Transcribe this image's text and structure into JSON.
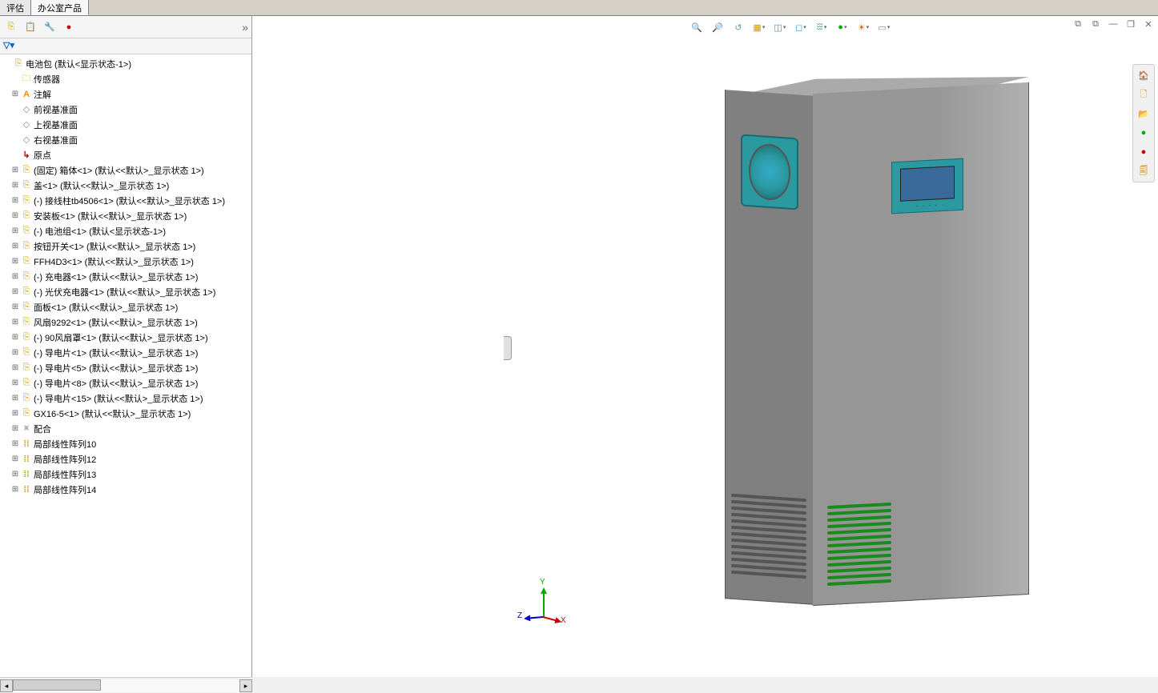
{
  "tabs": {
    "t1": "评估",
    "t2": "办公室产品"
  },
  "filter": "▽▾",
  "tree": {
    "root": "电池包  (默认<显示状态-1>)",
    "sensors": "传感器",
    "annotations": "注解",
    "front_plane": "前视基准面",
    "top_plane": "上视基准面",
    "right_plane": "右视基准面",
    "origin": "原点",
    "items": [
      "(固定) 箱体<1> (默认<<默认>_显示状态 1>)",
      "盖<1> (默认<<默认>_显示状态 1>)",
      "(-) 接线柱tb4506<1> (默认<<默认>_显示状态 1>)",
      "安装板<1> (默认<<默认>_显示状态 1>)",
      "(-) 电池组<1> (默认<显示状态-1>)",
      "按钮开关<1> (默认<<默认>_显示状态 1>)",
      "FFH4D3<1> (默认<<默认>_显示状态 1>)",
      "(-) 充电器<1> (默认<<默认>_显示状态 1>)",
      "(-) 光伏充电器<1> (默认<<默认>_显示状态 1>)",
      "面板<1> (默认<<默认>_显示状态 1>)",
      "风扇9292<1> (默认<<默认>_显示状态 1>)",
      "(-) 90风扇罩<1> (默认<<默认>_显示状态 1>)",
      "(-) 导电片<1> (默认<<默认>_显示状态 1>)",
      "(-) 导电片<5> (默认<<默认>_显示状态 1>)",
      "(-) 导电片<8> (默认<<默认>_显示状态 1>)",
      "(-) 导电片<15> (默认<<默认>_显示状态 1>)",
      "GX16-5<1> (默认<<默认>_显示状态 1>)"
    ],
    "mates": "配合",
    "patterns": [
      "局部线性阵列10",
      "局部线性阵列12",
      "局部线性阵列13",
      "局部线性阵列14"
    ]
  },
  "headsup_icons": [
    {
      "name": "zoom-to-fit-icon",
      "g": "🔍",
      "c": "#5a8"
    },
    {
      "name": "zoom-to-area-icon",
      "g": "🔎",
      "c": "#5a8"
    },
    {
      "name": "previous-view-icon",
      "g": "↺",
      "c": "#5a8"
    },
    {
      "name": "section-view-icon",
      "g": "▦",
      "c": "#c90",
      "dd": true
    },
    {
      "name": "view-orientation-icon",
      "g": "◫",
      "c": "#39c",
      "dd": true
    },
    {
      "name": "display-style-icon",
      "g": "◻",
      "c": "#39c",
      "dd": true
    },
    {
      "name": "hide-show-icon",
      "g": "ꖿ",
      "c": "#5a8",
      "dd": true
    },
    {
      "name": "edit-appearance-icon",
      "g": "●",
      "c": "#0a0",
      "dd": true
    },
    {
      "name": "apply-scene-icon",
      "g": "☀",
      "c": "#c60",
      "dd": true
    },
    {
      "name": "view-settings-icon",
      "g": "▭",
      "c": "#888",
      "dd": true
    }
  ],
  "window_controls": [
    {
      "name": "dock-left-icon",
      "g": "⧉"
    },
    {
      "name": "dock-right-icon",
      "g": "⧉"
    },
    {
      "name": "minimize-icon",
      "g": "—"
    },
    {
      "name": "maximize-icon",
      "g": "❐"
    },
    {
      "name": "close-icon",
      "g": "✕"
    }
  ],
  "right_toolbar": [
    {
      "name": "home-icon",
      "g": "🏠",
      "c": "#c80"
    },
    {
      "name": "new-doc-icon",
      "g": "🗋",
      "c": "#c80"
    },
    {
      "name": "open-icon",
      "g": "📂",
      "c": "#c80"
    },
    {
      "name": "sphere-icon",
      "g": "●",
      "c": "#0a0"
    },
    {
      "name": "appearance-icon",
      "g": "●",
      "c": "#c00"
    },
    {
      "name": "options-icon",
      "g": "🗐",
      "c": "#c80"
    }
  ],
  "triad": {
    "x": "X",
    "y": "Y",
    "z": "Z"
  },
  "colors": {
    "model_body": "#969696",
    "model_side": "#808080",
    "model_top": "#aaaaaa",
    "fan": "#2a9aa0",
    "lcd_body": "#2a9aa0",
    "lcd_screen": "#3a6a9a",
    "vent_front": "#1a8a1a",
    "vent_side": "#555555",
    "triad_x": "#cc0000",
    "triad_y": "#00aa00",
    "triad_z": "#0000cc"
  },
  "lcd_dots": "• • • •"
}
